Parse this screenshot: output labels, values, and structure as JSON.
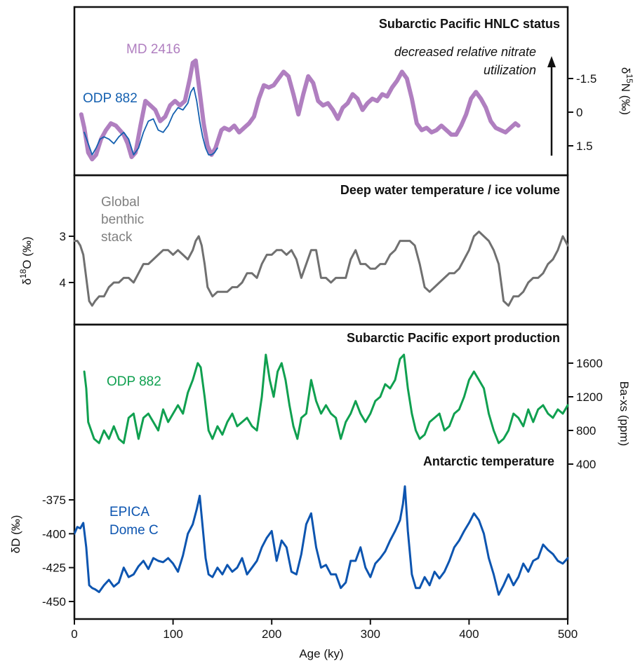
{
  "colors": {
    "nitrogen_md2416": "#b07fc0",
    "nitrogen_odp882": "#1460b0",
    "benthic": "#707070",
    "ba_odp882": "#10a050",
    "epica": "#0d55b0",
    "axes": "#111111"
  },
  "annotation": {
    "line1": "decreased relative nitrate",
    "line2": "utilization"
  },
  "chart_data": [
    {
      "type": "line",
      "title": "Subarctic Pacific HNLC status",
      "xlabel": "Age (ky)",
      "ylabel": "δ15N (‰)",
      "ylabel_pre": "δ",
      "ylabel_sup": "15",
      "ylabel_post": "N (‰)",
      "y_axis_side": "right",
      "y_axis_inverted": true,
      "xlim": [
        0,
        500
      ],
      "ylim": [
        -2.7,
        2.9
      ],
      "yticks": [
        -1.5,
        0,
        1.5
      ],
      "ytick_labels": [
        "-1.5",
        "0",
        "1.5"
      ],
      "series": [
        {
          "name": "MD 2416",
          "x": [
            7,
            10,
            14,
            18,
            22,
            27,
            32,
            37,
            42,
            46,
            50,
            54,
            58,
            62,
            67,
            72,
            77,
            82,
            87,
            92,
            97,
            102,
            107,
            112,
            117,
            120,
            123,
            127,
            131,
            135,
            139,
            143,
            146,
            149,
            152,
            157,
            162,
            167,
            172,
            177,
            182,
            187,
            192,
            197,
            202,
            207,
            212,
            217,
            222,
            227,
            232,
            237,
            242,
            247,
            252,
            257,
            262,
            267,
            272,
            277,
            282,
            287,
            292,
            297,
            302,
            307,
            312,
            317,
            322,
            327,
            332,
            337,
            342,
            347,
            352,
            357,
            362,
            367,
            372,
            377,
            382,
            387,
            392,
            397,
            402,
            407,
            412,
            417,
            422,
            427,
            432,
            437,
            442,
            447,
            450
          ],
          "values": [
            0.1,
            0.7,
            1.8,
            2.1,
            1.9,
            1.2,
            0.8,
            0.5,
            0.6,
            0.8,
            1.0,
            1.4,
            2.0,
            1.8,
            0.6,
            -0.5,
            -0.3,
            -0.1,
            0.4,
            0.2,
            -0.3,
            -0.5,
            -0.3,
            -0.5,
            -1.5,
            -2.2,
            -2.3,
            -0.9,
            0.5,
            1.5,
            1.9,
            1.6,
            1.2,
            0.8,
            0.7,
            0.8,
            0.6,
            0.9,
            0.7,
            0.5,
            0.2,
            -0.6,
            -1.2,
            -1.1,
            -1.2,
            -1.5,
            -1.8,
            -1.6,
            -0.8,
            0.1,
            -0.8,
            -1.6,
            -1.3,
            -0.5,
            -0.3,
            -0.4,
            -0.1,
            0.3,
            -0.2,
            -0.4,
            -0.8,
            -0.6,
            -0.1,
            -0.4,
            -0.6,
            -0.5,
            -0.8,
            -0.7,
            -1.1,
            -1.4,
            -1.8,
            -1.5,
            -0.6,
            0.5,
            0.8,
            0.7,
            0.9,
            0.8,
            0.6,
            0.8,
            1.0,
            1.0,
            0.6,
            0.1,
            -0.6,
            -0.9,
            -0.6,
            -0.2,
            0.4,
            0.7,
            0.8,
            0.9,
            0.7,
            0.5,
            0.6
          ]
        },
        {
          "name": "ODP 882",
          "x": [
            10,
            14,
            18,
            22,
            26,
            30,
            35,
            40,
            45,
            50,
            55,
            60,
            65,
            70,
            75,
            80,
            85,
            90,
            95,
            100,
            105,
            110,
            115,
            118,
            121,
            124,
            127,
            130,
            133,
            136,
            139,
            142,
            145
          ],
          "values": [
            0.9,
            1.4,
            1.9,
            1.6,
            1.2,
            1.1,
            1.2,
            1.4,
            1.1,
            0.9,
            1.2,
            1.9,
            1.6,
            0.9,
            0.4,
            0.3,
            0.8,
            0.9,
            0.6,
            0.1,
            -0.2,
            -0.1,
            -0.4,
            -0.9,
            -1.1,
            -0.5,
            0.4,
            1.1,
            1.6,
            1.9,
            1.9,
            1.8,
            1.6
          ]
        }
      ]
    },
    {
      "type": "line",
      "title": "Deep water temperature / ice volume",
      "xlabel": "Age (ky)",
      "ylabel": "δ18O (‰)",
      "ylabel_pre": "δ",
      "ylabel_sup": "18",
      "ylabel_post": "O (‰)",
      "y_axis_side": "left",
      "y_axis_inverted": true,
      "xlim": [
        0,
        500
      ],
      "ylim": [
        2.3,
        4.6
      ],
      "yticks": [
        3,
        4
      ],
      "ytick_labels": [
        "3",
        "4"
      ],
      "series": [
        {
          "name": "Global benthic stack",
          "x": [
            0,
            3,
            6,
            9,
            12,
            15,
            18,
            21,
            25,
            30,
            35,
            40,
            45,
            50,
            55,
            60,
            65,
            70,
            75,
            80,
            85,
            90,
            95,
            100,
            105,
            110,
            115,
            120,
            123,
            126,
            129,
            132,
            135,
            140,
            145,
            150,
            155,
            160,
            165,
            170,
            175,
            180,
            185,
            190,
            195,
            200,
            205,
            210,
            215,
            220,
            225,
            230,
            235,
            240,
            245,
            250,
            255,
            260,
            265,
            270,
            275,
            280,
            285,
            290,
            295,
            300,
            305,
            310,
            315,
            320,
            325,
            330,
            335,
            340,
            345,
            350,
            355,
            360,
            365,
            370,
            375,
            380,
            385,
            390,
            395,
            400,
            405,
            410,
            415,
            420,
            425,
            430,
            435,
            440,
            445,
            450,
            455,
            460,
            465,
            470,
            475,
            480,
            485,
            490,
            495,
            500
          ],
          "values": [
            3.1,
            3.1,
            3.2,
            3.4,
            3.9,
            4.4,
            4.5,
            4.4,
            4.3,
            4.3,
            4.1,
            4.0,
            4.0,
            3.9,
            3.9,
            4.0,
            3.8,
            3.6,
            3.6,
            3.5,
            3.4,
            3.3,
            3.3,
            3.4,
            3.3,
            3.4,
            3.5,
            3.3,
            3.1,
            3.0,
            3.2,
            3.6,
            4.1,
            4.3,
            4.2,
            4.2,
            4.2,
            4.1,
            4.1,
            4.0,
            3.8,
            3.8,
            3.9,
            3.6,
            3.4,
            3.4,
            3.3,
            3.3,
            3.4,
            3.3,
            3.5,
            3.9,
            3.6,
            3.3,
            3.3,
            3.9,
            3.9,
            4.0,
            3.9,
            3.9,
            3.9,
            3.5,
            3.3,
            3.6,
            3.6,
            3.7,
            3.7,
            3.6,
            3.6,
            3.4,
            3.3,
            3.1,
            3.1,
            3.1,
            3.2,
            3.6,
            4.1,
            4.2,
            4.1,
            4.0,
            3.9,
            3.8,
            3.8,
            3.7,
            3.5,
            3.3,
            3.0,
            2.9,
            3.0,
            3.1,
            3.3,
            3.6,
            4.4,
            4.5,
            4.3,
            4.3,
            4.2,
            4.0,
            3.9,
            3.9,
            3.8,
            3.6,
            3.5,
            3.3,
            3.0,
            3.2
          ]
        }
      ]
    },
    {
      "type": "line",
      "title": "Subarctic Pacific export production",
      "xlabel": "Age (ky)",
      "ylabel": "Ba-xs (ppm)",
      "y_axis_side": "right",
      "y_axis_inverted": false,
      "xlim": [
        0,
        500
      ],
      "ylim": [
        300,
        1800
      ],
      "yticks": [
        400,
        800,
        1200,
        1600
      ],
      "ytick_labels": [
        "400",
        "800",
        "1200",
        "1600"
      ],
      "series": [
        {
          "name": "ODP 882",
          "x": [
            10,
            12,
            14,
            17,
            20,
            25,
            30,
            35,
            40,
            45,
            50,
            55,
            60,
            65,
            70,
            75,
            80,
            85,
            90,
            95,
            100,
            105,
            110,
            115,
            120,
            125,
            128,
            132,
            136,
            140,
            145,
            150,
            155,
            160,
            165,
            170,
            175,
            180,
            185,
            190,
            194,
            198,
            202,
            206,
            210,
            214,
            218,
            222,
            226,
            230,
            235,
            240,
            245,
            250,
            255,
            260,
            265,
            270,
            275,
            280,
            285,
            290,
            295,
            300,
            305,
            310,
            315,
            320,
            325,
            330,
            334,
            338,
            342,
            346,
            350,
            355,
            360,
            365,
            370,
            375,
            380,
            385,
            390,
            395,
            400,
            405,
            410,
            415,
            420,
            425,
            430,
            435,
            440,
            445,
            450,
            455,
            460,
            465,
            470,
            475,
            480,
            485,
            490,
            495,
            500
          ],
          "values": [
            1500,
            1300,
            900,
            800,
            700,
            650,
            800,
            700,
            850,
            700,
            650,
            950,
            1000,
            700,
            950,
            1000,
            900,
            800,
            1050,
            900,
            1000,
            1100,
            1000,
            1250,
            1400,
            1600,
            1550,
            1200,
            800,
            700,
            850,
            750,
            900,
            1000,
            850,
            900,
            950,
            850,
            800,
            1200,
            1700,
            1400,
            1200,
            1500,
            1600,
            1400,
            1100,
            850,
            700,
            950,
            1000,
            1400,
            1150,
            1000,
            1100,
            1000,
            950,
            700,
            900,
            1000,
            1150,
            1000,
            900,
            1000,
            1150,
            1200,
            1350,
            1300,
            1400,
            1650,
            1700,
            1300,
            1000,
            800,
            700,
            750,
            900,
            950,
            1000,
            800,
            850,
            1000,
            1050,
            1200,
            1400,
            1500,
            1400,
            1300,
            1000,
            800,
            650,
            700,
            800,
            1000,
            950,
            850,
            1050,
            900,
            1050,
            1100,
            1000,
            950,
            1050,
            1000,
            1100
          ]
        }
      ]
    },
    {
      "type": "line",
      "title": "Antarctic temperature",
      "xlabel": "Age (ky)",
      "ylabel": "δD (‰)",
      "y_axis_side": "left",
      "y_axis_inverted": false,
      "xlim": [
        0,
        500
      ],
      "ylim": [
        -452,
        -362
      ],
      "yticks": [
        -375,
        -400,
        -425,
        -450
      ],
      "ytick_labels": [
        "-375",
        "-400",
        "-425",
        "-450"
      ],
      "x_ticks": [
        0,
        100,
        200,
        300,
        400,
        500
      ],
      "x_tick_labels": [
        "0",
        "100",
        "200",
        "300",
        "400",
        "500"
      ],
      "series": [
        {
          "name": "EPICA Dome C",
          "x": [
            0,
            3,
            6,
            9,
            12,
            15,
            18,
            21,
            25,
            30,
            35,
            40,
            45,
            50,
            55,
            60,
            65,
            70,
            75,
            80,
            85,
            90,
            95,
            100,
            105,
            110,
            115,
            120,
            124,
            127,
            130,
            133,
            136,
            140,
            145,
            150,
            155,
            160,
            165,
            170,
            175,
            180,
            185,
            190,
            195,
            200,
            205,
            210,
            215,
            220,
            225,
            230,
            235,
            240,
            245,
            250,
            255,
            260,
            265,
            270,
            275,
            280,
            285,
            290,
            295,
            300,
            305,
            310,
            315,
            320,
            325,
            330,
            333,
            335,
            338,
            342,
            346,
            350,
            355,
            360,
            365,
            370,
            375,
            380,
            385,
            390,
            395,
            400,
            405,
            410,
            415,
            420,
            425,
            430,
            435,
            440,
            445,
            450,
            455,
            460,
            465,
            470,
            475,
            480,
            485,
            490,
            495,
            500
          ],
          "values": [
            -400,
            -395,
            -396,
            -392,
            -410,
            -438,
            -440,
            -441,
            -443,
            -438,
            -434,
            -439,
            -436,
            -425,
            -432,
            -430,
            -424,
            -420,
            -426,
            -418,
            -420,
            -421,
            -418,
            -422,
            -428,
            -416,
            -400,
            -393,
            -382,
            -372,
            -395,
            -418,
            -430,
            -432,
            -425,
            -430,
            -423,
            -428,
            -425,
            -418,
            -430,
            -425,
            -420,
            -410,
            -403,
            -398,
            -420,
            -405,
            -410,
            -428,
            -430,
            -415,
            -393,
            -385,
            -410,
            -425,
            -423,
            -430,
            -430,
            -440,
            -436,
            -420,
            -420,
            -410,
            -425,
            -432,
            -422,
            -418,
            -413,
            -405,
            -398,
            -390,
            -378,
            -365,
            -398,
            -430,
            -440,
            -440,
            -432,
            -438,
            -428,
            -433,
            -428,
            -420,
            -410,
            -405,
            -398,
            -392,
            -385,
            -390,
            -400,
            -418,
            -430,
            -445,
            -438,
            -430,
            -438,
            -432,
            -422,
            -428,
            -420,
            -418,
            -408,
            -412,
            -415,
            -420,
            -422,
            -418
          ]
        }
      ]
    }
  ]
}
